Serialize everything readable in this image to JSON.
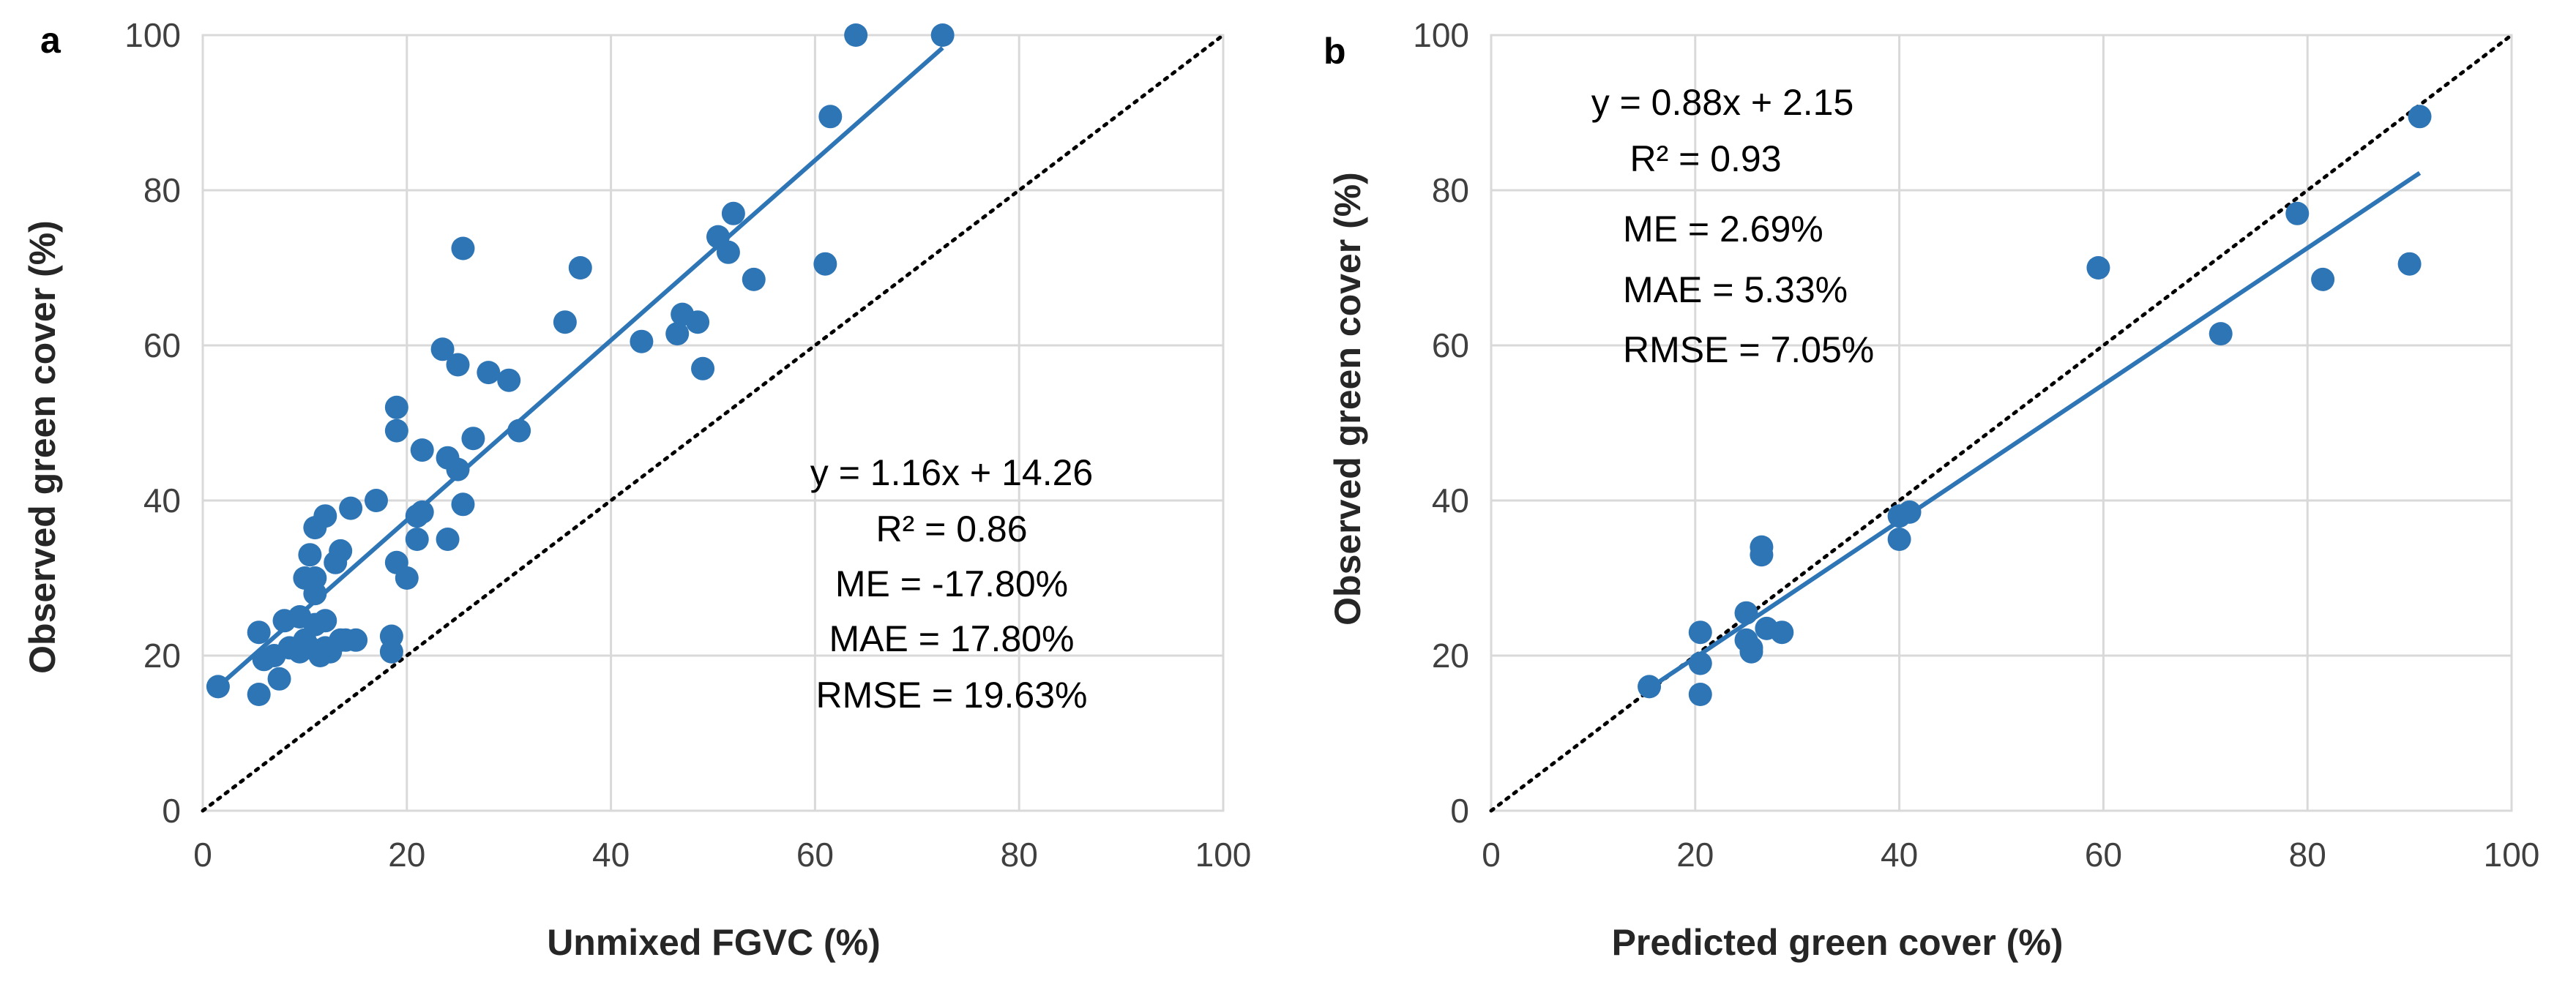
{
  "figure": {
    "accent_color": "#2e75b6",
    "grid_color": "#d9d9d9"
  },
  "chart_data": [
    {
      "type": "scatter",
      "panel_label": "a",
      "xlabel": "Unmixed  FGVC (%)",
      "ylabel": "Observed green cover (%)",
      "xlim": [
        0,
        100
      ],
      "ylim": [
        0,
        100
      ],
      "xticks": [
        "0",
        "20",
        "40",
        "60",
        "80",
        "100"
      ],
      "yticks": [
        "0",
        "20",
        "40",
        "60",
        "80",
        "100"
      ],
      "grid": true,
      "one_to_one_line": true,
      "trendline": {
        "slope": 1.16,
        "intercept": 14.26,
        "x_range": [
          1.5,
          72.5
        ]
      },
      "annotations": [
        "y = 1.16x + 14.26",
        "R² = 0.86",
        "ME = -17.80%",
        "MAE = 17.80%",
        "RMSE = 19.63%"
      ],
      "points": [
        [
          1.5,
          16
        ],
        [
          5.5,
          15
        ],
        [
          5.5,
          23
        ],
        [
          6,
          19.5
        ],
        [
          7,
          20
        ],
        [
          7.5,
          17
        ],
        [
          8,
          24.5
        ],
        [
          8.5,
          21
        ],
        [
          9.5,
          20.5
        ],
        [
          9.5,
          25
        ],
        [
          10,
          30
        ],
        [
          10,
          22
        ],
        [
          10.5,
          33
        ],
        [
          10.5,
          21
        ],
        [
          11,
          24
        ],
        [
          11,
          28
        ],
        [
          11,
          30
        ],
        [
          11,
          36.5
        ],
        [
          11.5,
          20
        ],
        [
          12,
          24.5
        ],
        [
          12,
          21
        ],
        [
          12,
          38
        ],
        [
          12.5,
          20.5
        ],
        [
          13,
          32
        ],
        [
          13.5,
          22
        ],
        [
          13.5,
          33.5
        ],
        [
          14,
          22
        ],
        [
          14.5,
          39
        ],
        [
          15,
          22
        ],
        [
          17,
          40
        ],
        [
          18.5,
          20.5
        ],
        [
          18.5,
          22.5
        ],
        [
          19,
          32
        ],
        [
          19,
          52
        ],
        [
          19,
          49
        ],
        [
          20,
          30
        ],
        [
          21,
          35
        ],
        [
          21,
          38
        ],
        [
          21.5,
          38.5
        ],
        [
          21.5,
          46.5
        ],
        [
          23.5,
          59.5
        ],
        [
          24,
          45.5
        ],
        [
          24,
          35
        ],
        [
          25,
          44
        ],
        [
          25,
          57.5
        ],
        [
          25.5,
          39.5
        ],
        [
          25.5,
          72.5
        ],
        [
          26.5,
          48
        ],
        [
          28,
          56.5
        ],
        [
          30,
          55.5
        ],
        [
          31,
          49
        ],
        [
          35.5,
          63
        ],
        [
          37,
          70
        ],
        [
          43,
          60.5
        ],
        [
          46.5,
          61.5
        ],
        [
          47,
          64
        ],
        [
          48.5,
          63
        ],
        [
          49,
          57
        ],
        [
          50.5,
          74
        ],
        [
          51.5,
          72
        ],
        [
          52,
          77
        ],
        [
          54,
          68.5
        ],
        [
          61,
          70.5
        ],
        [
          61.5,
          89.5
        ],
        [
          64,
          100
        ],
        [
          72.5,
          100
        ]
      ]
    },
    {
      "type": "scatter",
      "panel_label": "b",
      "xlabel": "Predicted green cover (%)",
      "ylabel": "Observed  green cover (%)",
      "xlim": [
        0,
        100
      ],
      "ylim": [
        0,
        100
      ],
      "xticks": [
        "0",
        "20",
        "40",
        "60",
        "80",
        "100"
      ],
      "yticks": [
        "0",
        "20",
        "40",
        "60",
        "80",
        "100"
      ],
      "grid": true,
      "one_to_one_line": true,
      "trendline": {
        "slope": 0.88,
        "intercept": 2.15,
        "x_range": [
          15.5,
          91
        ]
      },
      "annotations": [
        "y = 0.88x + 2.15",
        "R² = 0.93",
        "ME = 2.69%",
        "MAE = 5.33%",
        "RMSE = 7.05%"
      ],
      "points": [
        [
          15.5,
          16
        ],
        [
          20.5,
          15
        ],
        [
          20.5,
          19
        ],
        [
          20.5,
          23
        ],
        [
          25,
          25.5
        ],
        [
          25,
          22
        ],
        [
          25.5,
          21
        ],
        [
          25.5,
          20.5
        ],
        [
          26.5,
          34
        ],
        [
          26.5,
          33
        ],
        [
          27,
          23.5
        ],
        [
          28.5,
          23
        ],
        [
          40,
          35
        ],
        [
          40,
          38
        ],
        [
          41,
          38.5
        ],
        [
          59.5,
          70
        ],
        [
          71.5,
          61.5
        ],
        [
          79,
          77
        ],
        [
          81.5,
          68.5
        ],
        [
          90,
          70.5
        ],
        [
          91,
          89.5
        ]
      ]
    }
  ]
}
